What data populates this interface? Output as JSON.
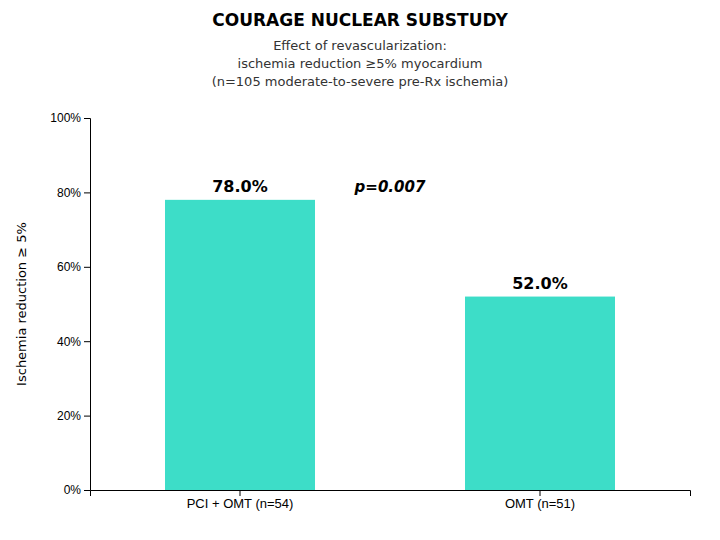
{
  "chart_data": {
    "type": "bar",
    "title": "COURAGE NUCLEAR SUBSTUDY",
    "subtitle": [
      "Effect of revascularization:",
      "ischemia reduction ≥5% myocardium",
      "(n=105 moderate-to-severe pre-Rx ischemia)"
    ],
    "ylabel": "Ischemia reduction ≥ 5%",
    "categories": [
      "PCI + OMT (n=54)",
      "OMT (n=51)"
    ],
    "values": [
      78.0,
      52.0
    ],
    "value_labels": [
      "78.0%",
      "52.0%"
    ],
    "data_labels": true,
    "color": "#3DDDC8",
    "annotations": [
      "p=0.007"
    ],
    "ylim": [
      0,
      100
    ],
    "yticks": [
      {
        "value": 0,
        "label": "0%"
      },
      {
        "value": 20,
        "label": "20%"
      },
      {
        "value": 40,
        "label": "40%"
      },
      {
        "value": 60,
        "label": "60%"
      },
      {
        "value": 80,
        "label": "80%"
      },
      {
        "value": 100,
        "label": "100%"
      }
    ],
    "grid": false
  }
}
